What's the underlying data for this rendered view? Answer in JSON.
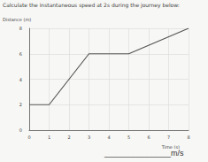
{
  "question": "Calculate the instantaneous speed at 2s during the journey below:",
  "chart_data": {
    "type": "line",
    "x_label": "Time (s)",
    "y_label": "Distance (m)",
    "x": [
      0,
      1,
      3,
      5,
      8
    ],
    "values": [
      2,
      2,
      6,
      6,
      8
    ],
    "color": "#555555",
    "xlim": [
      0,
      8
    ],
    "xticks": [
      0,
      1,
      2,
      3,
      4,
      5,
      6,
      7,
      8
    ],
    "ylim": [
      0,
      8
    ],
    "yticks": [
      0,
      2,
      4,
      6,
      8
    ],
    "grid": true
  },
  "answer": {
    "blank": "_______________",
    "unit": "m/s"
  }
}
